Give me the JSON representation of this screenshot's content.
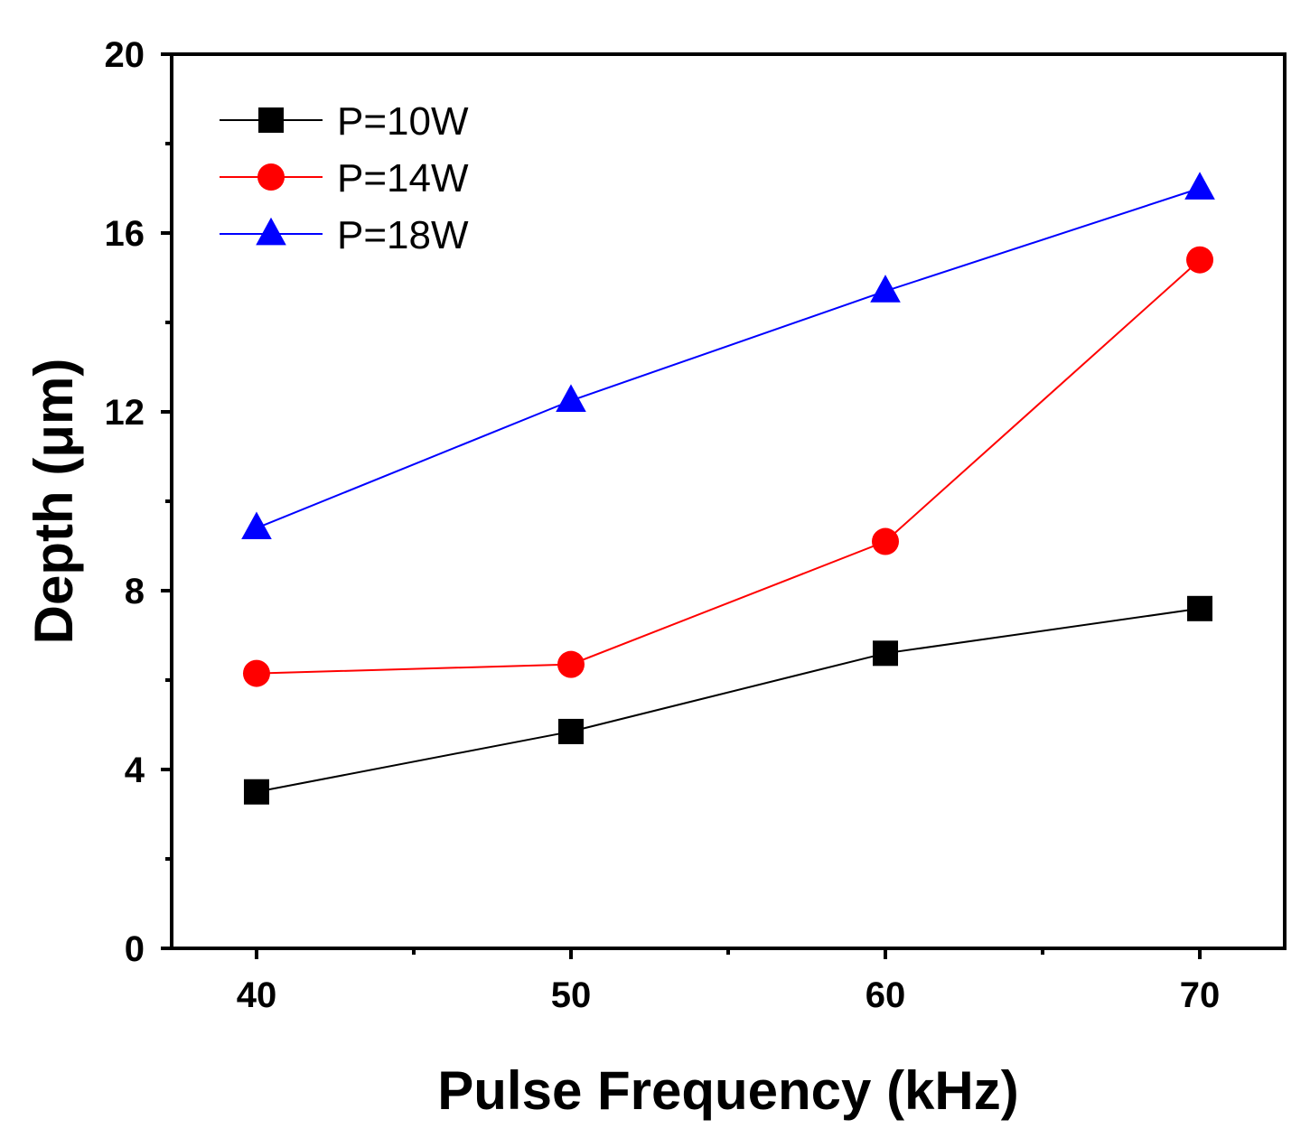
{
  "chart_data": {
    "type": "line",
    "title": "",
    "xlabel": "Pulse Frequency (kHz)",
    "ylabel": "Depth (μm)",
    "x": [
      40,
      50,
      60,
      70
    ],
    "xlim": [
      37.3,
      72.7
    ],
    "ylim": [
      0,
      20
    ],
    "xticks": [
      40,
      50,
      60,
      70
    ],
    "xtick_labels": [
      "40",
      "50",
      "60",
      "70"
    ],
    "yticks": [
      0,
      4,
      8,
      12,
      16,
      20
    ],
    "ytick_labels": [
      "0",
      "4",
      "8",
      "12",
      "16",
      "20"
    ],
    "grid": false,
    "legend_position": "top-left",
    "series": [
      {
        "name": "P=10W",
        "values": [
          3.5,
          4.85,
          6.6,
          7.6
        ],
        "color": "#000000",
        "marker": "square"
      },
      {
        "name": "P=14W",
        "values": [
          6.15,
          6.35,
          9.1,
          15.4
        ],
        "color": "#ff0000",
        "marker": "circle"
      },
      {
        "name": "P=18W",
        "values": [
          9.4,
          12.25,
          14.7,
          17.0
        ],
        "color": "#0000ff",
        "marker": "triangle"
      }
    ]
  }
}
